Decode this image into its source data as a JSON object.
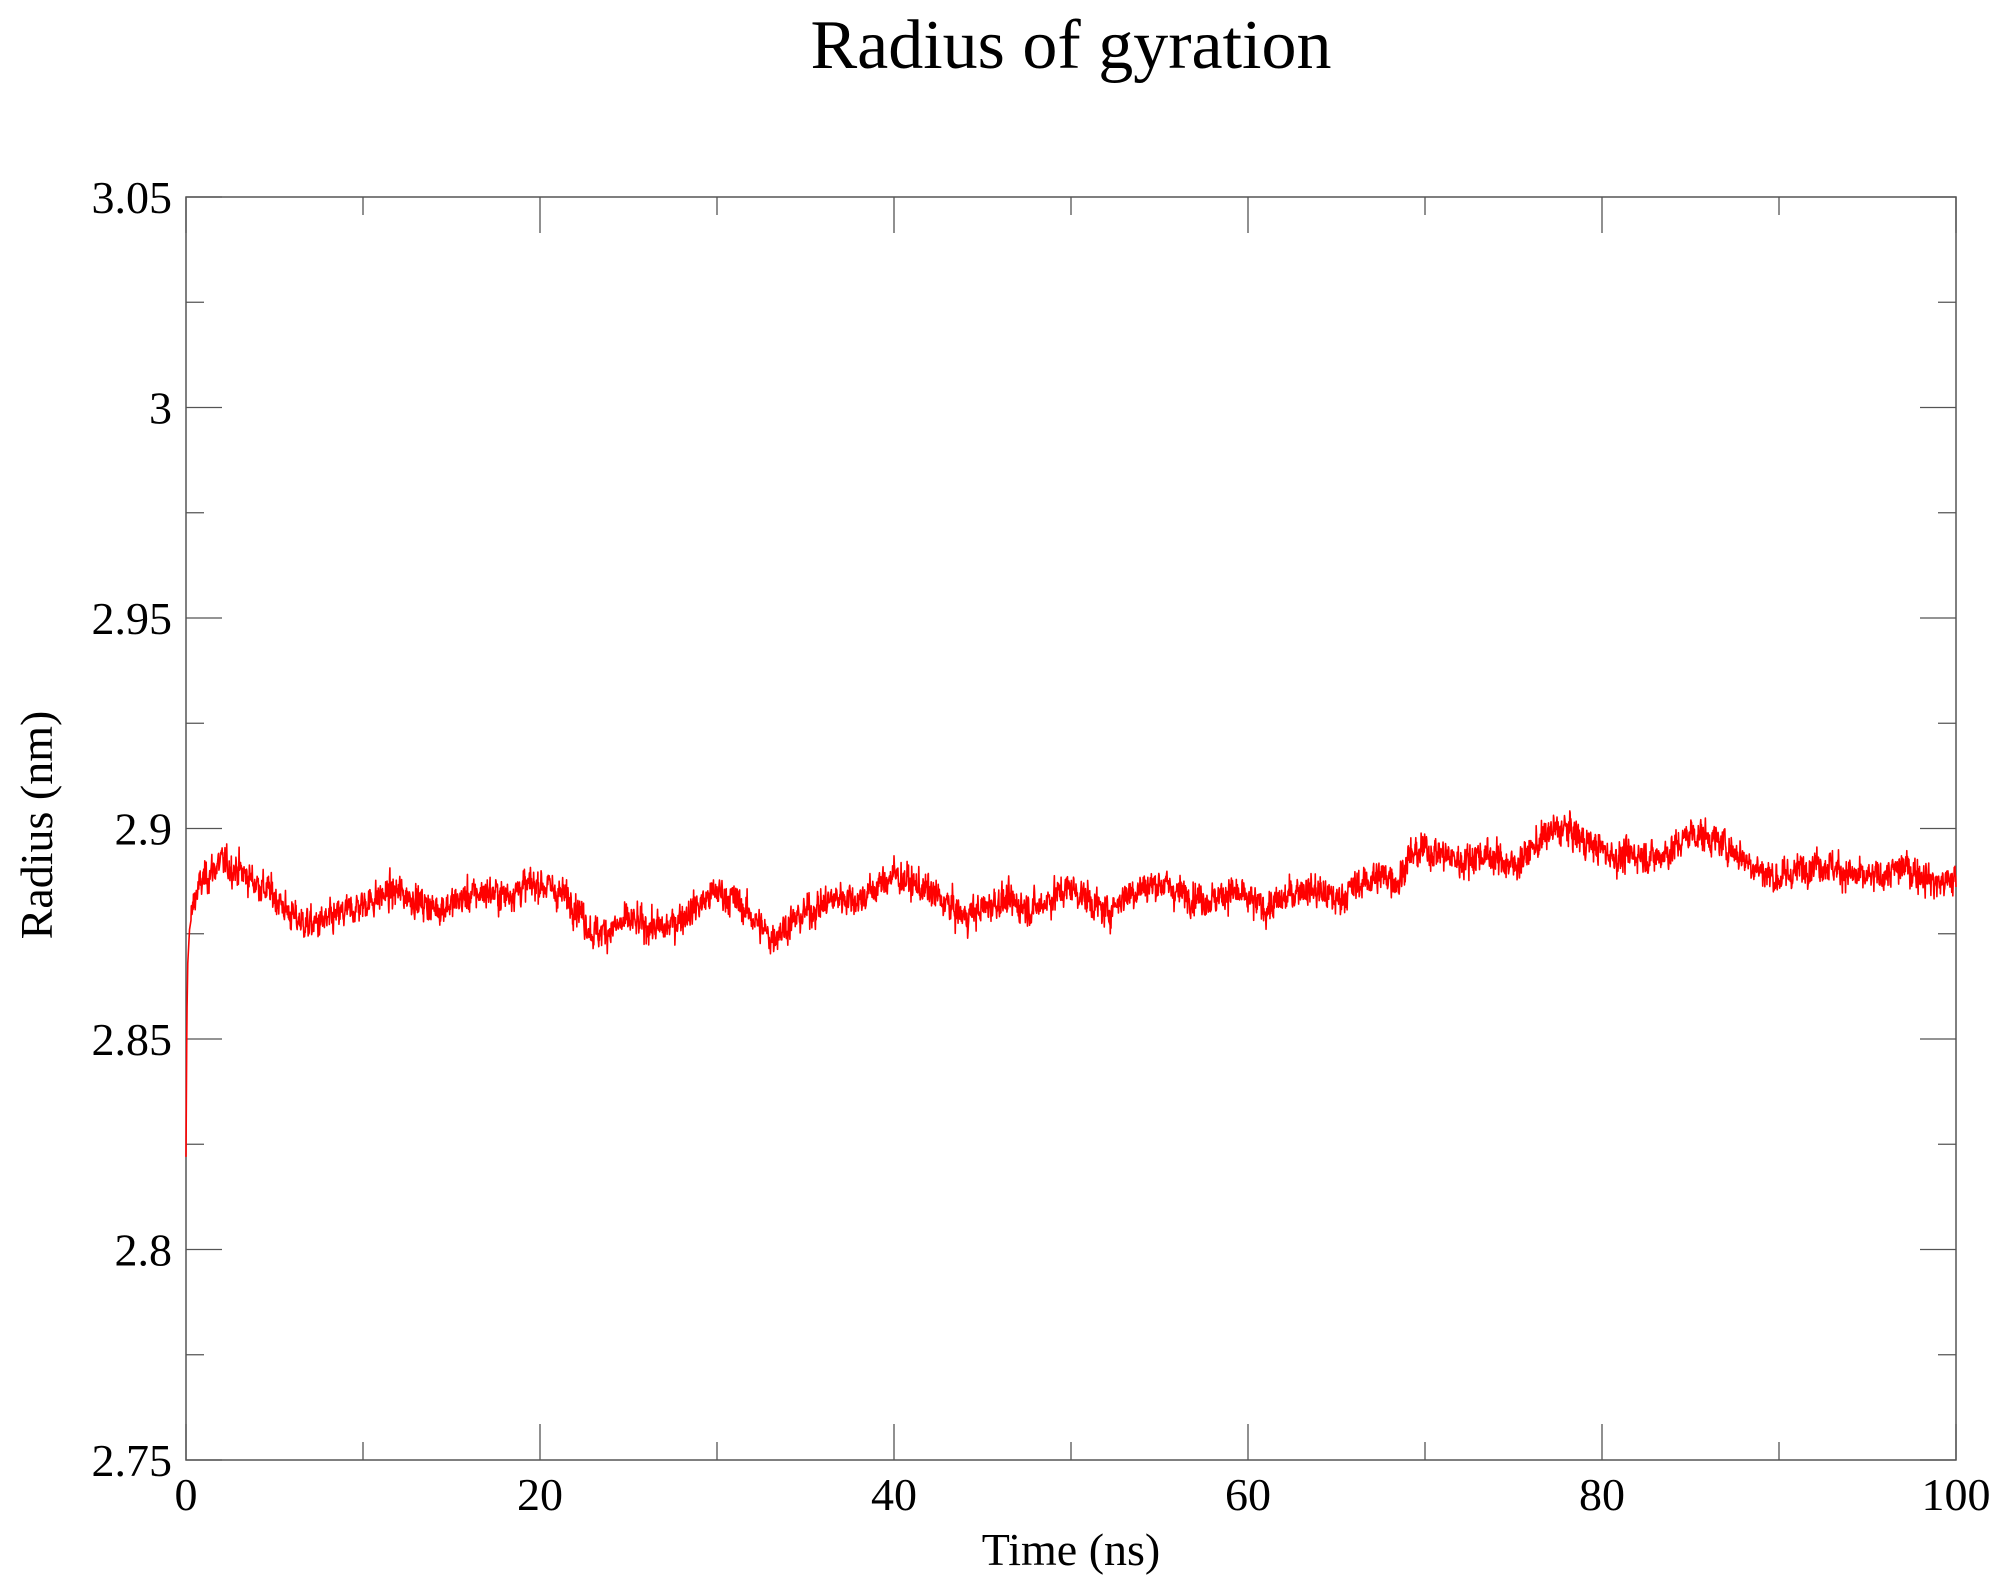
{
  "chart_data": {
    "type": "line",
    "title": "Radius of gyration",
    "xlabel": "Time (ns)",
    "ylabel": "Radius (nm)",
    "xlim": [
      0,
      100
    ],
    "ylim": [
      2.75,
      3.05
    ],
    "x_major_ticks": [
      0,
      20,
      40,
      60,
      80,
      100
    ],
    "x_minor_ticks": [
      10,
      30,
      50,
      70,
      90
    ],
    "y_major_ticks": [
      2.75,
      2.8,
      2.85,
      2.9,
      2.95,
      3,
      3.05
    ],
    "y_minor_ticks": [
      2.775,
      2.825,
      2.875,
      2.925,
      2.975,
      3.025
    ],
    "x_tick_labels": [
      "0",
      "20",
      "40",
      "60",
      "80",
      "100"
    ],
    "y_tick_labels": [
      "2.75",
      "2.8",
      "2.85",
      "2.9",
      "2.95",
      "3",
      "3.05"
    ],
    "grid": false,
    "legend": "none",
    "series_color": "#ff0000",
    "series": [
      {
        "x": [
          0,
          0.05,
          0.1,
          0.2,
          0.5,
          1,
          2,
          3,
          4,
          5,
          6,
          7,
          8,
          9,
          10,
          11,
          12,
          13,
          14,
          15,
          16,
          17,
          18,
          19,
          20,
          21,
          22,
          23,
          24,
          25,
          26,
          27,
          28,
          29,
          30,
          31,
          32,
          33,
          34,
          35,
          36,
          37,
          38,
          39,
          40,
          41,
          42,
          43,
          44,
          45,
          46,
          47,
          48,
          49,
          50,
          51,
          52,
          53,
          54,
          55,
          56,
          57,
          58,
          59,
          60,
          61,
          62,
          63,
          64,
          65,
          66,
          67,
          68,
          68.5,
          69,
          70,
          71,
          72,
          73,
          74,
          75,
          76,
          77,
          78,
          79,
          80,
          81,
          82,
          83,
          84,
          85,
          86,
          87,
          88,
          89,
          90,
          91,
          92,
          93,
          94,
          95,
          96,
          97,
          98,
          99,
          100
        ],
        "y": [
          2.822,
          2.855,
          2.868,
          2.876,
          2.884,
          2.888,
          2.892,
          2.89,
          2.887,
          2.884,
          2.879,
          2.877,
          2.878,
          2.88,
          2.882,
          2.884,
          2.885,
          2.883,
          2.881,
          2.882,
          2.884,
          2.885,
          2.884,
          2.886,
          2.887,
          2.885,
          2.882,
          2.875,
          2.876,
          2.878,
          2.877,
          2.876,
          2.879,
          2.882,
          2.885,
          2.883,
          2.879,
          2.874,
          2.877,
          2.88,
          2.882,
          2.884,
          2.883,
          2.886,
          2.889,
          2.887,
          2.885,
          2.882,
          2.879,
          2.881,
          2.883,
          2.882,
          2.881,
          2.884,
          2.886,
          2.883,
          2.88,
          2.884,
          2.886,
          2.887,
          2.885,
          2.884,
          2.883,
          2.885,
          2.883,
          2.881,
          2.883,
          2.886,
          2.885,
          2.883,
          2.886,
          2.888,
          2.889,
          2.887,
          2.893,
          2.895,
          2.894,
          2.892,
          2.894,
          2.893,
          2.891,
          2.895,
          2.899,
          2.9,
          2.897,
          2.895,
          2.893,
          2.894,
          2.893,
          2.895,
          2.899,
          2.898,
          2.896,
          2.893,
          2.89,
          2.888,
          2.89,
          2.892,
          2.891,
          2.889,
          2.888,
          2.889,
          2.891,
          2.889,
          2.887,
          2.888
        ]
      }
    ]
  }
}
